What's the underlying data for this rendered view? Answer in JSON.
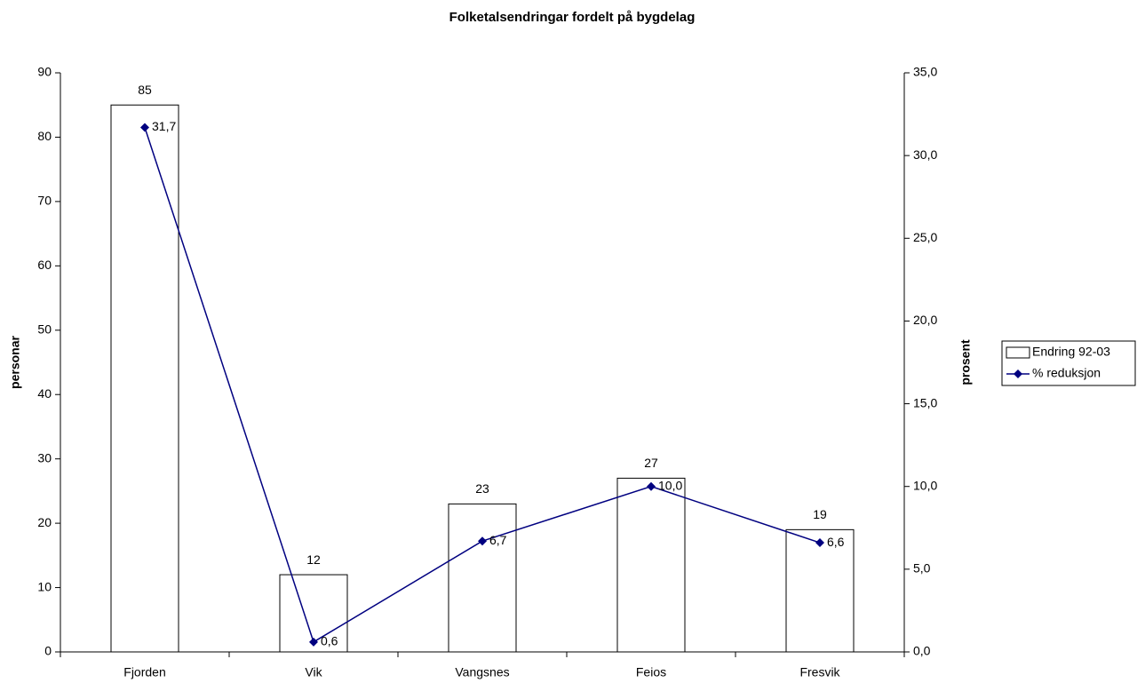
{
  "chart_data": {
    "type": "bar",
    "title": "Folketalsendringar fordelt på bygdelag",
    "y_label": "personar",
    "y2_label": "prosent",
    "categories": [
      "Fjorden",
      "Vik",
      "Vangsnes",
      "Feios",
      "Fresvik"
    ],
    "series": [
      {
        "name": "Endring 92-03",
        "type": "bar",
        "color": "#ffffff",
        "values": [
          85,
          12,
          23,
          27,
          19
        ]
      },
      {
        "name": "% reduksjon",
        "type": "line",
        "axis": "y2",
        "color": "#000080",
        "values": [
          31.7,
          0.6,
          6.7,
          10.0,
          6.6
        ],
        "value_labels": [
          "31,7",
          "0,6",
          "6,7",
          "10,0",
          "6,6"
        ]
      }
    ],
    "ylim": [
      0,
      90
    ],
    "yticks": [
      0,
      10,
      20,
      30,
      40,
      50,
      60,
      70,
      80,
      90
    ],
    "y2lim": [
      0,
      35
    ],
    "y2ticks": [
      {
        "value": 0,
        "label": "0,0"
      },
      {
        "value": 5,
        "label": "5,0"
      },
      {
        "value": 10,
        "label": "10,0"
      },
      {
        "value": 15,
        "label": "15,0"
      },
      {
        "value": 20,
        "label": "20,0"
      },
      {
        "value": 25,
        "label": "25,0"
      },
      {
        "value": 30,
        "label": "30,0"
      },
      {
        "value": 35,
        "label": "35,0"
      }
    ],
    "legend": "right"
  }
}
